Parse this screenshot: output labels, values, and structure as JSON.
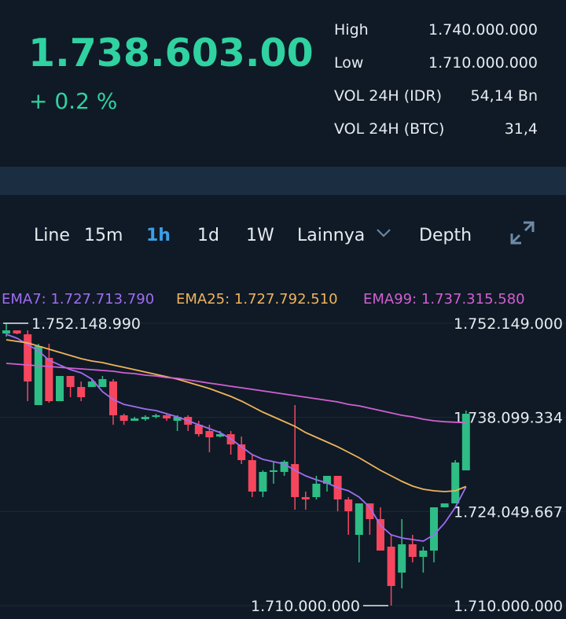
{
  "header": {
    "price": "1.738.603.00",
    "change": "+ 0.2 %",
    "stats": [
      {
        "label": "High",
        "value": "1.740.000.000"
      },
      {
        "label": "Low",
        "value": "1.710.000.000"
      },
      {
        "label": "VOL 24H (IDR)",
        "value": "54,14 Bn"
      },
      {
        "label": "VOL 24H (BTC)",
        "value": "31,4"
      }
    ]
  },
  "tabs": [
    "Line",
    "15m",
    "1h",
    "1d",
    "1W",
    "Lainnya",
    "Depth"
  ],
  "active_tab": 2,
  "chart_data": {
    "type": "candlestick",
    "open": [
      1750620000,
      1751090000,
      1750503000,
      1739937000,
      1746981000,
      1740524000,
      1744281000,
      1742637000,
      1742637000,
      1742637000,
      1743459000,
      1738411000,
      1737589000,
      1737824000,
      1738176000,
      1738411000,
      1737589000,
      1738176000,
      1737002000,
      1736063000,
      1735241000,
      1735593000,
      1734067000,
      1731719000,
      1727023000,
      1729958000,
      1729958000,
      1731132000,
      1726201000,
      1726201000,
      1728197000,
      1729371000,
      1725849000,
      1720566000,
      1725262000,
      1722914000,
      1718805000,
      1714931000,
      1719157000,
      1717279000,
      1718218000,
      1724675000,
      1725262000,
      1730193000
    ],
    "high": [
      1752148990,
      1751090000,
      1751090000,
      1749094000,
      1749094000,
      1744281000,
      1744281000,
      1743459000,
      1743811000,
      1744281000,
      1743811000,
      1738646000,
      1738176000,
      1738411000,
      1738646000,
      1738646000,
      1738411000,
      1738411000,
      1737589000,
      1737002000,
      1736063000,
      1736063000,
      1735241000,
      1732541000,
      1730193000,
      1731367000,
      1731719000,
      1739937000,
      1727023000,
      1729371000,
      1729371000,
      1729371000,
      1726201000,
      1725262000,
      1725262000,
      1724675000,
      1720566000,
      1722914000,
      1720566000,
      1718805000,
      1724675000,
      1725262000,
      1731719000,
      1739115000
    ],
    "low": [
      1750151000,
      1750503000,
      1740524000,
      1739937000,
      1740289000,
      1740524000,
      1741111000,
      1740524000,
      1742637000,
      1742637000,
      1737002000,
      1737002000,
      1737589000,
      1737589000,
      1737941000,
      1737589000,
      1736063000,
      1736063000,
      1735241000,
      1732893000,
      1735124000,
      1732541000,
      1731132000,
      1726201000,
      1726201000,
      1728197000,
      1729371000,
      1724323000,
      1724323000,
      1725849000,
      1727023000,
      1724088000,
      1720566000,
      1716457000,
      1720566000,
      1718218000,
      1710000000,
      1712583000,
      1716457000,
      1714931000,
      1716457000,
      1724675000,
      1725262000,
      1730193000
    ],
    "close": [
      1751090000,
      1750620000,
      1743459000,
      1748742000,
      1740524000,
      1744281000,
      1742637000,
      1741111000,
      1743459000,
      1743811000,
      1738411000,
      1737589000,
      1737941000,
      1738176000,
      1738411000,
      1737941000,
      1738176000,
      1737002000,
      1735593000,
      1735124000,
      1735593000,
      1734067000,
      1731719000,
      1727023000,
      1729958000,
      1730193000,
      1731484000,
      1726201000,
      1725849000,
      1728197000,
      1729371000,
      1725849000,
      1724088000,
      1725262000,
      1722914000,
      1718218000,
      1712935000,
      1719157000,
      1717279000,
      1718218000,
      1724675000,
      1725262000,
      1731367000,
      1738646000
    ],
    "up_color": "#2ebd85",
    "down_color": "#f6465d",
    "series": [
      {
        "name": "EMA7: 1.727.713.790",
        "color": "#a06cf0",
        "values": [
          1750500000,
          1749920000,
          1748980000,
          1748040000,
          1746630000,
          1745920000,
          1745220000,
          1744750000,
          1743810000,
          1741930000,
          1740760000,
          1740050000,
          1739700000,
          1739350000,
          1739120000,
          1738650000,
          1738180000,
          1737590000,
          1737000000,
          1736420000,
          1735830000,
          1734890000,
          1733710000,
          1732540000,
          1731840000,
          1731480000,
          1731130000,
          1730190000,
          1729370000,
          1728780000,
          1728310000,
          1727610000,
          1727140000,
          1726200000,
          1724680000,
          1721970000,
          1720570000,
          1720100000,
          1719860000,
          1719630000,
          1720570000,
          1722330000,
          1724680000,
          1727713790
        ]
      },
      {
        "name": "EMA25: 1.727.792.510",
        "color": "#f0b35a",
        "values": [
          1749680000,
          1749450000,
          1749210000,
          1748740000,
          1748270000,
          1747800000,
          1747330000,
          1746860000,
          1746510000,
          1746280000,
          1745920000,
          1745570000,
          1745220000,
          1744870000,
          1744520000,
          1744160000,
          1743810000,
          1743340000,
          1742870000,
          1742400000,
          1741820000,
          1741230000,
          1740520000,
          1739700000,
          1738880000,
          1738180000,
          1737470000,
          1736770000,
          1735830000,
          1735120000,
          1734420000,
          1733710000,
          1732890000,
          1732070000,
          1731130000,
          1730190000,
          1729370000,
          1728550000,
          1727840000,
          1727380000,
          1727140000,
          1727020000,
          1727140000,
          1727792510
        ]
      },
      {
        "name": "EMA99: 1.737.315.580",
        "color": "#d15fd0",
        "values": [
          1746160000,
          1746040000,
          1745920000,
          1745810000,
          1745690000,
          1745570000,
          1745450000,
          1745340000,
          1745220000,
          1745100000,
          1744990000,
          1744750000,
          1744630000,
          1744400000,
          1744280000,
          1744050000,
          1743930000,
          1743690000,
          1743460000,
          1743220000,
          1742990000,
          1742750000,
          1742520000,
          1742290000,
          1742050000,
          1741820000,
          1741580000,
          1741350000,
          1741110000,
          1740880000,
          1740640000,
          1740410000,
          1740050000,
          1739820000,
          1739470000,
          1739120000,
          1738760000,
          1738410000,
          1738180000,
          1737820000,
          1737590000,
          1737450000,
          1737380000,
          1737315580
        ]
      }
    ],
    "ylim": [
      1710000000,
      1752149000
    ],
    "yticks": [
      {
        "value": 1752149000,
        "label": "1.752.149.000"
      },
      {
        "value": 1738099334,
        "label": "1.738.099.334"
      },
      {
        "value": 1724049667,
        "label": "1.724.049.667"
      },
      {
        "value": 1710000000,
        "label": "1.710.000.000"
      }
    ],
    "grid": true,
    "annotations": [
      {
        "value": 1752148990,
        "label": "1.752.148.990"
      },
      {
        "value": 1710000000,
        "label": "1.710.000.000"
      }
    ]
  }
}
